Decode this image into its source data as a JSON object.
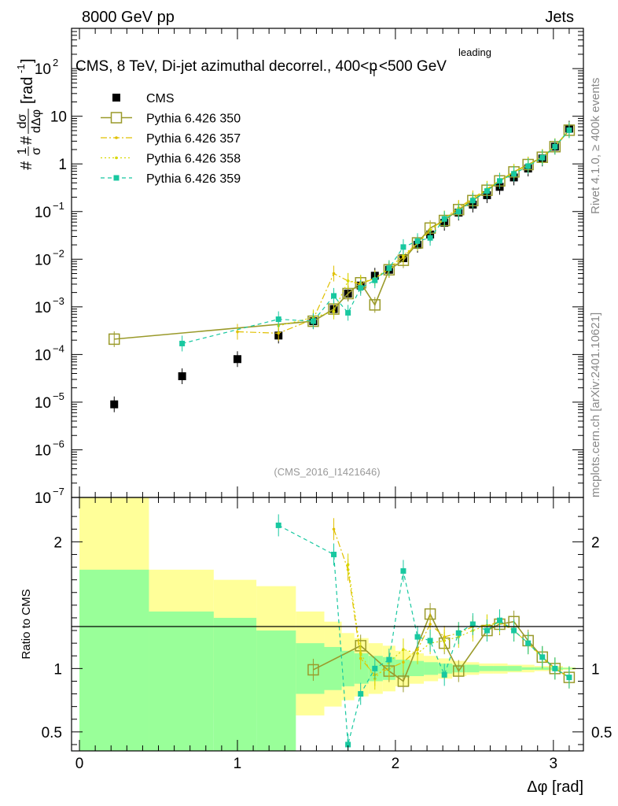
{
  "header": {
    "left": "8000 GeV pp",
    "right": "Jets",
    "side_top": "Rivet 4.1.0, ≥ 400k events",
    "side_bottom": "mcplots.cern.ch [arXiv:2401.10621]"
  },
  "chart_data": [
    {
      "type": "scatter",
      "panel": "main",
      "title_prefix": "CMS, 8 TeV, Di-jet azimuthal decorrel., 400<p",
      "title_sup": "leading",
      "title_sub": "T",
      "title_suffix": "<500 GeV",
      "watermark": "(CMS_2016_I1421646)",
      "ylabel": "#1/σ #dσ/dΔφ [rad⁻¹]",
      "ylabel_prefix": "#",
      "ylabel_frac1_num": "1",
      "ylabel_frac1_den": "σ",
      "ylabel_mid": "#",
      "ylabel_frac2_num": "dσ",
      "ylabel_frac2_den": "dΔφ",
      "ylabel_unit": "[rad",
      "ylabel_unit_exp": "-1",
      "ylabel_close": "]",
      "yscale": "log",
      "ylim": [
        1e-07,
        700
      ],
      "xlim": [
        -0.05,
        3.19
      ],
      "yticks": [
        {
          "value": 1e-07,
          "label": "10",
          "exp": "−7"
        },
        {
          "value": 1e-06,
          "label": "10",
          "exp": "−6"
        },
        {
          "value": 1e-05,
          "label": "10",
          "exp": "−5"
        },
        {
          "value": 0.0001,
          "label": "10",
          "exp": "−4"
        },
        {
          "value": 0.001,
          "label": "10",
          "exp": "−3"
        },
        {
          "value": 0.01,
          "label": "10",
          "exp": "−2"
        },
        {
          "value": 0.1,
          "label": "10",
          "exp": "−1"
        },
        {
          "value": 1,
          "label": "1",
          "exp": ""
        },
        {
          "value": 10,
          "label": "10",
          "exp": ""
        },
        {
          "value": 100,
          "label": "10",
          "exp": "2"
        }
      ],
      "legend": [
        {
          "name": "CMS",
          "style": "cms"
        },
        {
          "name": "Pythia 6.426 350",
          "style": "p350"
        },
        {
          "name": "Pythia 6.426 357",
          "style": "p357"
        },
        {
          "name": "Pythia 6.426 358",
          "style": "p358"
        },
        {
          "name": "Pythia 6.426 359",
          "style": "p359"
        }
      ],
      "series": [
        {
          "name": "CMS",
          "color": "#000000",
          "x": [
            0.22,
            0.65,
            1.0,
            1.26,
            1.48,
            1.61,
            1.7,
            1.78,
            1.87,
            1.96,
            2.05,
            2.14,
            2.22,
            2.31,
            2.4,
            2.49,
            2.58,
            2.66,
            2.75,
            2.84,
            2.93,
            3.01,
            3.1
          ],
          "y": [
            9e-06,
            3.5e-05,
            8e-05,
            0.00025,
            0.0005,
            0.0009,
            0.0019,
            0.0028,
            0.0045,
            0.006,
            0.0105,
            0.02,
            0.033,
            0.058,
            0.095,
            0.14,
            0.22,
            0.33,
            0.52,
            0.8,
            1.3,
            2.3,
            5.5
          ]
        },
        {
          "name": "Pythia 6.426 350",
          "color": "#9a9a2a",
          "x": [
            0.22,
            1.48,
            1.61,
            1.7,
            1.78,
            1.87,
            1.96,
            2.05,
            2.14,
            2.22,
            2.31,
            2.4,
            2.49,
            2.58,
            2.66,
            2.75,
            2.84,
            2.93,
            3.01,
            3.1
          ],
          "y": [
            0.00021,
            0.0005,
            0.0009,
            0.0019,
            0.0032,
            0.0011,
            0.006,
            0.0095,
            0.022,
            0.045,
            0.065,
            0.11,
            0.17,
            0.28,
            0.44,
            0.68,
            0.97,
            1.38,
            2.3,
            5.1
          ]
        },
        {
          "name": "Pythia 6.426 357",
          "color": "#e0c000",
          "x": [
            1.0,
            1.26,
            1.48,
            1.61,
            1.7,
            1.78,
            1.87,
            1.96,
            2.05,
            2.14,
            2.22,
            2.31,
            2.4,
            2.49,
            2.58,
            2.66,
            2.75,
            2.84,
            2.93,
            3.01,
            3.1
          ],
          "y": [
            0.0003,
            0.00028,
            0.00055,
            0.005,
            0.0035,
            0.003,
            0.004,
            0.006,
            0.011,
            0.022,
            0.04,
            0.072,
            0.12,
            0.19,
            0.3,
            0.45,
            0.68,
            0.95,
            1.4,
            2.35,
            5.2
          ]
        },
        {
          "name": "Pythia 6.426 358",
          "color": "#d8d800",
          "x": [
            1.26,
            1.48,
            1.61,
            1.7,
            1.78,
            1.87,
            1.96,
            2.05,
            2.14,
            2.22,
            2.31,
            2.4,
            2.49,
            2.58,
            2.66,
            2.75,
            2.84,
            2.93,
            3.01,
            3.1
          ],
          "y": [
            0.0004,
            0.0006,
            0.0008,
            0.0035,
            0.0032,
            0.004,
            0.0065,
            0.012,
            0.022,
            0.04,
            0.07,
            0.115,
            0.18,
            0.3,
            0.44,
            0.68,
            0.97,
            1.4,
            2.35,
            5.2
          ]
        },
        {
          "name": "Pythia 6.426 359",
          "color": "#18c8a0",
          "x": [
            0.65,
            1.26,
            1.48,
            1.61,
            1.7,
            1.78,
            1.87,
            1.96,
            2.05,
            2.14,
            2.22,
            2.31,
            2.4,
            2.49,
            2.58,
            2.66,
            2.75,
            2.84,
            2.93,
            3.01,
            3.1
          ],
          "y": [
            0.00017,
            0.00055,
            0.0005,
            0.0017,
            0.00075,
            0.0025,
            0.0036,
            0.0065,
            0.018,
            0.024,
            0.028,
            0.07,
            0.1,
            0.17,
            0.27,
            0.44,
            0.62,
            0.9,
            1.35,
            2.3,
            5.1
          ]
        }
      ]
    },
    {
      "type": "scatter",
      "panel": "ratio",
      "ylabel": "Ratio to CMS",
      "xlabel": "Δφ [rad]",
      "ylim": [
        0.35,
        2.35
      ],
      "xlim": [
        -0.05,
        3.19
      ],
      "yticks": [
        0.5,
        1,
        2
      ],
      "xticks": [
        0,
        1,
        2,
        3
      ],
      "bands": {
        "edges": [
          0.0,
          0.44,
          0.85,
          1.12,
          1.37,
          1.55,
          1.66,
          1.74,
          1.83,
          1.92,
          2.0,
          2.09,
          2.18,
          2.27,
          2.36,
          2.45,
          2.53,
          2.62,
          2.71,
          2.8,
          2.88,
          2.97,
          3.06,
          3.14
        ],
        "green_lo": [
          0.35,
          0.35,
          0.35,
          0.35,
          0.8,
          0.83,
          0.86,
          0.88,
          0.9,
          0.91,
          0.93,
          0.94,
          0.95,
          0.96,
          0.97,
          0.97,
          0.98,
          0.98,
          0.98,
          0.99,
          0.99,
          0.99,
          0.995
        ],
        "green_hi": [
          1.78,
          1.45,
          1.4,
          1.3,
          1.2,
          1.17,
          1.14,
          1.12,
          1.1,
          1.09,
          1.07,
          1.06,
          1.05,
          1.04,
          1.03,
          1.03,
          1.02,
          1.02,
          1.02,
          1.01,
          1.01,
          1.01,
          1.005
        ],
        "yellow_lo": [
          0.35,
          0.65,
          0.6,
          0.65,
          0.63,
          0.7,
          0.75,
          0.78,
          0.8,
          0.82,
          0.86,
          0.88,
          0.9,
          0.92,
          0.94,
          0.95,
          0.96,
          0.96,
          0.97,
          0.97,
          0.98,
          0.98,
          0.99
        ],
        "yellow_hi": [
          2.35,
          1.78,
          1.7,
          1.65,
          1.45,
          1.37,
          1.28,
          1.24,
          1.2,
          1.18,
          1.14,
          1.12,
          1.1,
          1.08,
          1.06,
          1.05,
          1.04,
          1.04,
          1.03,
          1.03,
          1.02,
          1.02,
          1.01
        ]
      },
      "series": [
        {
          "name": "Pythia 6.426 350",
          "x": [
            1.48,
            1.78,
            1.96,
            2.05,
            2.22,
            2.31,
            2.4,
            2.58,
            2.66,
            2.75,
            2.84,
            2.93,
            3.01,
            3.1
          ],
          "y": [
            0.99,
            1.18,
            0.98,
            0.9,
            1.43,
            1.2,
            0.98,
            1.3,
            1.35,
            1.37,
            1.22,
            1.09,
            1.0,
            0.93
          ]
        },
        {
          "name": "Pythia 6.426 357",
          "x": [
            1.61,
            1.7,
            1.78,
            1.87,
            1.96,
            2.05,
            2.14,
            2.22,
            2.31,
            2.4,
            2.49,
            2.58,
            2.66,
            2.75,
            2.84,
            2.93,
            3.01,
            3.1
          ],
          "y": [
            2.1,
            1.78,
            1.08,
            0.95,
            1.0,
            1.05,
            1.15,
            1.35,
            1.25,
            1.28,
            1.33,
            1.34,
            1.37,
            1.3,
            1.2,
            1.09,
            1.0,
            0.93
          ]
        },
        {
          "name": "Pythia 6.426 358",
          "x": [
            1.7,
            1.78,
            1.87,
            1.96,
            2.05,
            2.14,
            2.22,
            2.31,
            2.4,
            2.49,
            2.58,
            2.66,
            2.75,
            2.84,
            2.93,
            3.01,
            3.1
          ],
          "y": [
            1.82,
            1.12,
            0.92,
            1.05,
            1.15,
            1.12,
            1.2,
            1.22,
            1.25,
            1.3,
            1.34,
            1.36,
            1.3,
            1.2,
            1.08,
            1.0,
            0.93
          ]
        },
        {
          "name": "Pythia 6.426 359",
          "x": [
            1.26,
            1.61,
            1.7,
            1.78,
            1.87,
            1.96,
            2.05,
            2.14,
            2.22,
            2.31,
            2.4,
            2.49,
            2.58,
            2.66,
            2.75,
            2.84,
            2.93,
            3.01,
            3.1
          ],
          "y": [
            2.13,
            1.9,
            0.4,
            0.8,
            1.0,
            1.07,
            1.77,
            1.25,
            1.22,
            0.95,
            1.28,
            1.35,
            1.3,
            1.38,
            1.3,
            1.2,
            1.09,
            1.0,
            0.93
          ]
        }
      ]
    }
  ]
}
